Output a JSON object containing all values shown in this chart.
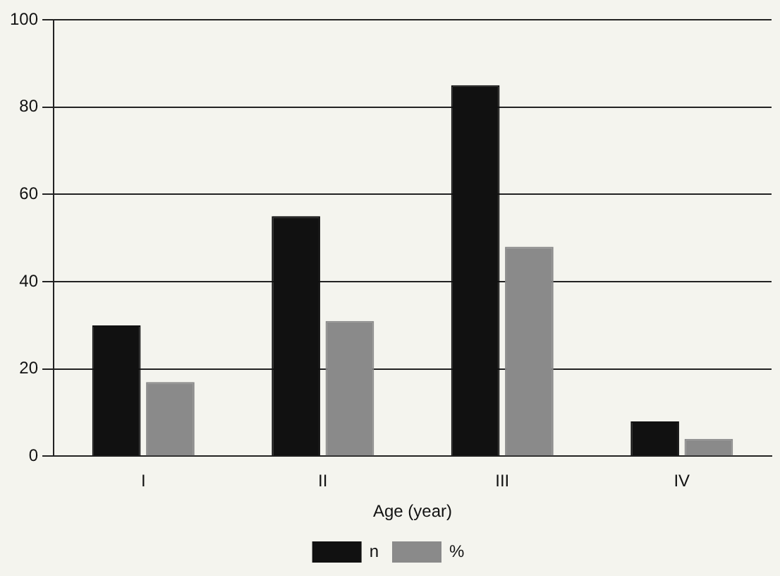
{
  "chart_data": {
    "type": "bar",
    "xlabel": "Age (year)",
    "categories": [
      "I",
      "II",
      "III",
      "IV"
    ],
    "series": [
      {
        "name": "n",
        "color": "#111111",
        "values": [
          30,
          55,
          85,
          8
        ]
      },
      {
        "name": "%",
        "color": "#8a8a8a",
        "values": [
          17,
          31,
          48,
          4
        ]
      }
    ],
    "ylim": [
      0,
      100
    ],
    "yticks": [
      0,
      20,
      40,
      60,
      80,
      100
    ],
    "grid": "y",
    "legend": "bottom"
  }
}
